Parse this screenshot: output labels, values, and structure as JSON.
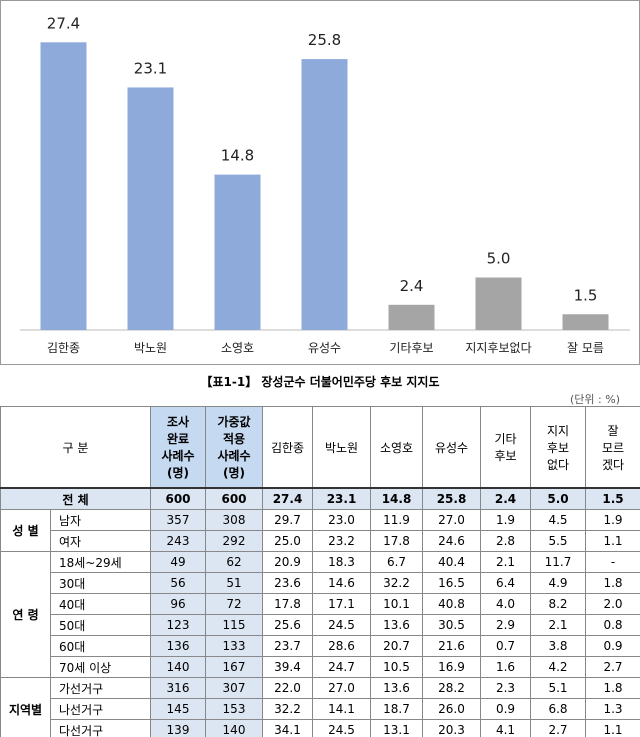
{
  "chart_data": {
    "type": "bar",
    "categories": [
      "김한종",
      "박노원",
      "소영호",
      "유성수",
      "기타후보",
      "지지후보없다",
      "잘 모름"
    ],
    "values": [
      27.4,
      23.1,
      14.8,
      25.8,
      2.4,
      5.0,
      1.5
    ],
    "value_labels": [
      "27.4",
      "23.1",
      "14.8",
      "25.8",
      "2.4",
      "5.0",
      "1.5"
    ],
    "colors": [
      "#8eaadb",
      "#8eaadb",
      "#8eaadb",
      "#8eaadb",
      "#a5a5a5",
      "#a5a5a5",
      "#a5a5a5"
    ]
  },
  "table": {
    "title": "【표1-1】 장성군수 더불어민주당 후보 지지도",
    "unit": "(단위 : %)",
    "header": [
      "구 분",
      "조사\n완료\n사례수\n(명)",
      "가중값\n적용\n사례수\n(명)",
      "김한종",
      "박노원",
      "소영호",
      "유성수",
      "기타\n후보",
      "지지\n후보\n없다",
      "잘\n모르\n겠다"
    ],
    "total": {
      "label": "전 체",
      "cells": [
        "600",
        "600",
        "27.4",
        "23.1",
        "14.8",
        "25.8",
        "2.4",
        "5.0",
        "1.5"
      ]
    },
    "groups": [
      {
        "label": "성 별",
        "rows": [
          {
            "name": "남자",
            "cells": [
              "357",
              "308",
              "29.7",
              "23.0",
              "11.9",
              "27.0",
              "1.9",
              "4.5",
              "1.9"
            ]
          },
          {
            "name": "여자",
            "cells": [
              "243",
              "292",
              "25.0",
              "23.2",
              "17.8",
              "24.6",
              "2.8",
              "5.5",
              "1.1"
            ]
          }
        ]
      },
      {
        "label": "연 령",
        "rows": [
          {
            "name": "18세~29세",
            "cells": [
              "49",
              "62",
              "20.9",
              "18.3",
              "6.7",
              "40.4",
              "2.1",
              "11.7",
              "-"
            ]
          },
          {
            "name": "30대",
            "cells": [
              "56",
              "51",
              "23.6",
              "14.6",
              "32.2",
              "16.5",
              "6.4",
              "4.9",
              "1.8"
            ]
          },
          {
            "name": "40대",
            "cells": [
              "96",
              "72",
              "17.8",
              "17.1",
              "10.1",
              "40.8",
              "4.0",
              "8.2",
              "2.0"
            ]
          },
          {
            "name": "50대",
            "cells": [
              "123",
              "115",
              "25.6",
              "24.5",
              "13.6",
              "30.5",
              "2.9",
              "2.1",
              "0.8"
            ]
          },
          {
            "name": "60대",
            "cells": [
              "136",
              "133",
              "23.7",
              "28.6",
              "20.7",
              "21.6",
              "0.7",
              "3.8",
              "0.9"
            ]
          },
          {
            "name": "70세 이상",
            "cells": [
              "140",
              "167",
              "39.4",
              "24.7",
              "10.5",
              "16.9",
              "1.6",
              "4.2",
              "2.7"
            ]
          }
        ]
      },
      {
        "label": "지역별",
        "rows": [
          {
            "name": "가선거구",
            "cells": [
              "316",
              "307",
              "22.0",
              "27.0",
              "13.6",
              "28.2",
              "2.3",
              "5.1",
              "1.8"
            ]
          },
          {
            "name": "나선거구",
            "cells": [
              "145",
              "153",
              "32.2",
              "14.1",
              "18.7",
              "26.0",
              "0.9",
              "6.8",
              "1.3"
            ]
          },
          {
            "name": "다선거구",
            "cells": [
              "139",
              "140",
              "34.1",
              "24.5",
              "13.1",
              "20.3",
              "4.1",
              "2.7",
              "1.1"
            ]
          }
        ]
      }
    ]
  }
}
